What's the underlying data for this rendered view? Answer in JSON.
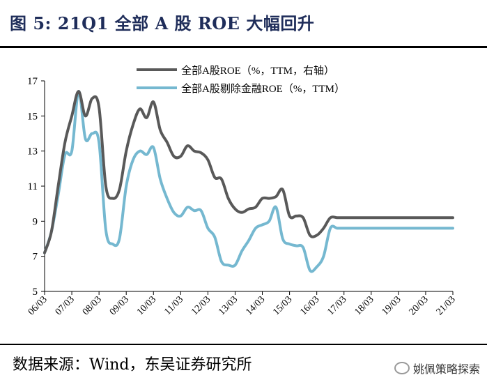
{
  "header": {
    "title": "图 5:  21Q1 全部 A 股 ROE 大幅回升"
  },
  "footer": {
    "source": "数据来源：Wind，东吴证券研究所",
    "watermark": "姚佩策略探索"
  },
  "chart_data": {
    "type": "line",
    "title": "",
    "xlabel": "",
    "ylabel": "",
    "ylim": [
      5,
      17
    ],
    "yticks": [
      5,
      7,
      9,
      11,
      13,
      15,
      17
    ],
    "xticks": [
      "06/03",
      "07/03",
      "08/03",
      "09/03",
      "10/03",
      "11/03",
      "12/03",
      "13/03",
      "14/03",
      "15/03",
      "16/03",
      "17/03",
      "18/03",
      "19/03",
      "20/03",
      "21/03"
    ],
    "legend_position": "top-center",
    "x": [
      2006.0,
      2006.25,
      2006.5,
      2006.75,
      2007.0,
      2007.25,
      2007.5,
      2007.75,
      2008.0,
      2008.25,
      2008.5,
      2008.75,
      2009.0,
      2009.25,
      2009.5,
      2009.75,
      2010.0,
      2010.25,
      2010.5,
      2010.75,
      2011.0,
      2011.25,
      2011.5,
      2011.75,
      2012.0,
      2012.25,
      2012.5,
      2012.75,
      2013.0,
      2013.25,
      2013.5,
      2013.75,
      2014.0,
      2014.25,
      2014.5,
      2014.75,
      2015.0,
      2015.25,
      2015.5,
      2015.75,
      2016.0,
      2016.25,
      2016.5,
      2016.75,
      2017.0,
      2017.25,
      2017.5,
      2017.75,
      2018.0,
      2018.25,
      2018.5,
      2018.75,
      2019.0,
      2019.25,
      2019.5,
      2019.75,
      2020.0,
      2020.25,
      2020.5,
      2020.75,
      2021.0
    ],
    "x_tick_values": [
      2006.0,
      2007.0,
      2008.0,
      2009.0,
      2010.0,
      2011.0,
      2012.0,
      2013.0,
      2014.0,
      2015.0,
      2016.0,
      2017.0,
      2018.0,
      2019.0,
      2020.0,
      2021.0
    ],
    "series": [
      {
        "name": "全部A股ROE（%，TTM，右轴）",
        "color": "#595959",
        "values": [
          7.2,
          8.4,
          11.0,
          13.5,
          15.0,
          16.4,
          15.0,
          16.0,
          15.5,
          11.0,
          10.3,
          10.8,
          13.0,
          14.5,
          15.4,
          14.9,
          15.8,
          14.2,
          13.5,
          12.7,
          12.7,
          13.3,
          13.0,
          12.9,
          12.5,
          11.5,
          11.4,
          10.3,
          9.7,
          9.5,
          9.7,
          9.8,
          10.3,
          10.3,
          10.4,
          10.8,
          9.3,
          9.3,
          9.2,
          8.2,
          8.2,
          8.6,
          9.2,
          9.2,
          9.2,
          9.2,
          9.2,
          9.2,
          9.2,
          9.2,
          9.2,
          9.2,
          9.2,
          9.2,
          9.2,
          9.2,
          9.2,
          9.2,
          9.2,
          9.2,
          9.2
        ]
      },
      {
        "name": "全部A股剔除金融ROE（%，TTM）",
        "color": "#75b8d0",
        "values": [
          7.2,
          8.4,
          10.5,
          12.8,
          13.0,
          16.4,
          13.7,
          14.0,
          13.5,
          8.5,
          7.7,
          8.0,
          11.0,
          12.5,
          13.0,
          12.8,
          13.2,
          11.4,
          10.3,
          9.5,
          9.3,
          9.8,
          9.6,
          9.6,
          8.6,
          8.1,
          6.7,
          6.5,
          6.5,
          7.3,
          7.9,
          8.6,
          8.8,
          9.0,
          9.8,
          8.0,
          7.7,
          7.6,
          7.5,
          6.2,
          6.4,
          7.0,
          8.6,
          8.6,
          8.6,
          8.6,
          8.6,
          8.6,
          8.6,
          8.6,
          8.6,
          8.6,
          8.6,
          8.6,
          8.6,
          8.6,
          8.6,
          8.6,
          8.6,
          8.6,
          8.6
        ]
      }
    ]
  }
}
